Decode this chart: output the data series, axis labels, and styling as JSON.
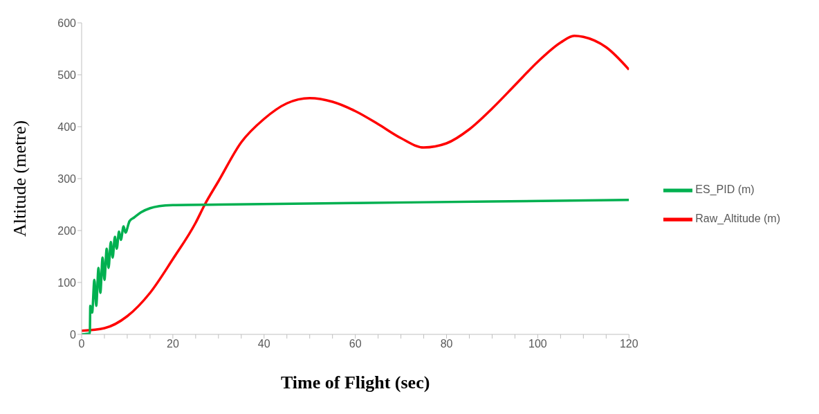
{
  "chart_data": {
    "type": "line",
    "xlabel": "Time of Flight (sec)",
    "ylabel": "Altitude (metre)",
    "xlim": [
      0,
      120
    ],
    "xticks": [
      0,
      {
        "value": 5,
        "label": null
      },
      {
        "value": 10,
        "label": null
      },
      {
        "value": 15,
        "label": null
      },
      20,
      {
        "value": 25,
        "label": null
      },
      {
        "value": 30,
        "label": null
      },
      {
        "value": 35,
        "label": null
      },
      40,
      {
        "value": 45,
        "label": null
      },
      {
        "value": 50,
        "label": null
      },
      {
        "value": 55,
        "label": null
      },
      60,
      {
        "value": 65,
        "label": null
      },
      {
        "value": 70,
        "label": null
      },
      {
        "value": 75,
        "label": null
      },
      80,
      {
        "value": 85,
        "label": null
      },
      {
        "value": 90,
        "label": null
      },
      {
        "value": 95,
        "label": null
      },
      100,
      {
        "value": 105,
        "label": null
      },
      {
        "value": 110,
        "label": null
      },
      {
        "value": 115,
        "label": null
      },
      120
    ],
    "ylim": [
      0,
      600
    ],
    "yticks": [
      0,
      100,
      200,
      300,
      400,
      500,
      600
    ],
    "grid": false,
    "legend": "right",
    "marker": "none",
    "line_style": "solid",
    "series": [
      {
        "name": "Raw_Altitude (m)",
        "color": "#ff0000",
        "x": [
          0,
          5,
          10,
          15,
          20,
          25,
          27,
          30,
          35,
          40,
          45,
          50,
          55,
          60,
          65,
          70,
          75,
          80,
          85,
          90,
          95,
          100,
          105,
          108,
          110,
          115,
          120
        ],
        "values": [
          7,
          12,
          35,
          80,
          145,
          215,
          250,
          295,
          370,
          415,
          445,
          455,
          448,
          430,
          405,
          378,
          360,
          368,
          395,
          435,
          480,
          525,
          562,
          575,
          573,
          553,
          510
        ]
      },
      {
        "name": "ES_PID (m)",
        "color": "#00b050",
        "x": [
          0,
          1.8,
          1.9,
          2.3,
          2.8,
          3.2,
          3.7,
          4.1,
          4.6,
          5.0,
          5.5,
          5.9,
          6.4,
          6.8,
          7.3,
          7.7,
          8.2,
          8.6,
          9.2,
          9.6,
          10.5,
          11.5,
          13,
          15,
          17,
          20,
          30,
          60,
          90,
          120
        ],
        "values": [
          0,
          2,
          55,
          42,
          105,
          55,
          128,
          80,
          148,
          105,
          165,
          128,
          178,
          148,
          188,
          165,
          198,
          182,
          208,
          196,
          218,
          225,
          235,
          243,
          247,
          249,
          250,
          253,
          256,
          259
        ]
      }
    ]
  }
}
